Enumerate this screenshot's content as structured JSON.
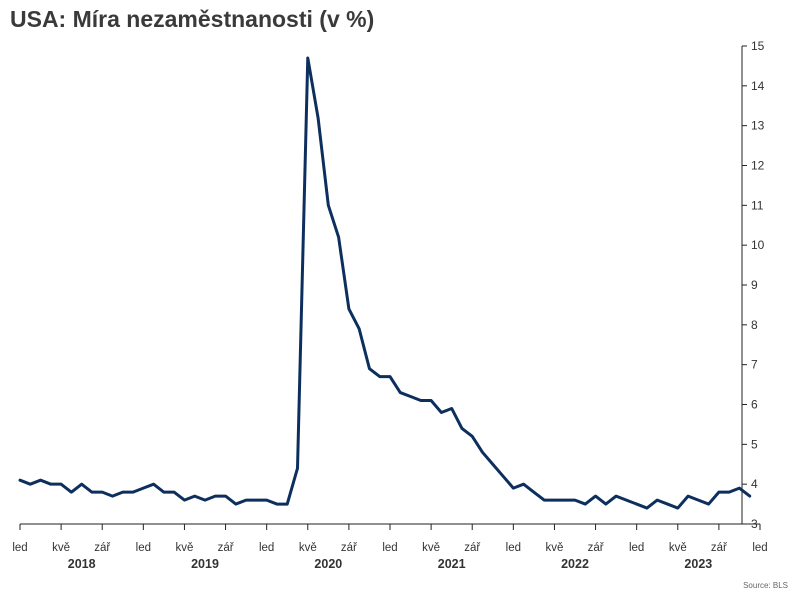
{
  "chart_data": {
    "type": "line",
    "title": "USA: Míra nezaměstnanosti (v %)",
    "source": "Source: BLS",
    "ylim": [
      3,
      15
    ],
    "y_ticks": [
      3,
      4,
      5,
      6,
      7,
      8,
      9,
      10,
      11,
      12,
      13,
      14,
      15
    ],
    "y_axis_side": "right",
    "grid": false,
    "legend": "none",
    "line_color": "#0d2f5e",
    "x_start": "2018-01",
    "x_end": "2024-01",
    "month_ticks": [
      {
        "date": "2018-01",
        "label": "led"
      },
      {
        "date": "2018-05",
        "label": "kvě"
      },
      {
        "date": "2018-09",
        "label": "zář"
      },
      {
        "date": "2019-01",
        "label": "led"
      },
      {
        "date": "2019-05",
        "label": "kvě"
      },
      {
        "date": "2019-09",
        "label": "zář"
      },
      {
        "date": "2020-01",
        "label": "led"
      },
      {
        "date": "2020-05",
        "label": "kvě"
      },
      {
        "date": "2020-09",
        "label": "zář"
      },
      {
        "date": "2021-01",
        "label": "led"
      },
      {
        "date": "2021-05",
        "label": "kvě"
      },
      {
        "date": "2021-09",
        "label": "zář"
      },
      {
        "date": "2022-01",
        "label": "led"
      },
      {
        "date": "2022-05",
        "label": "kvě"
      },
      {
        "date": "2022-09",
        "label": "zář"
      },
      {
        "date": "2023-01",
        "label": "led"
      },
      {
        "date": "2023-05",
        "label": "kvě"
      },
      {
        "date": "2023-09",
        "label": "zář"
      },
      {
        "date": "2024-01",
        "label": "led"
      }
    ],
    "year_labels": [
      {
        "date": "2018-07",
        "label": "2018"
      },
      {
        "date": "2019-07",
        "label": "2019"
      },
      {
        "date": "2020-07",
        "label": "2020"
      },
      {
        "date": "2021-07",
        "label": "2021"
      },
      {
        "date": "2022-07",
        "label": "2022"
      },
      {
        "date": "2023-07",
        "label": "2023"
      }
    ],
    "series": [
      {
        "start": "2018-01",
        "values": [
          4.1,
          4.0,
          4.1,
          4.0,
          4.0,
          3.8,
          4.0,
          3.8,
          3.8,
          3.7,
          3.8,
          3.8,
          3.9,
          4.0,
          3.8,
          3.8,
          3.6,
          3.7,
          3.6,
          3.7,
          3.7,
          3.5,
          3.6,
          3.6,
          3.6,
          3.5,
          3.5,
          4.4,
          14.7,
          13.2,
          11.0,
          10.2,
          8.4,
          7.9,
          6.9,
          6.7,
          6.7,
          6.3,
          6.2,
          6.1,
          6.1,
          5.8,
          5.9,
          5.4,
          5.2,
          4.8,
          4.5,
          4.2,
          3.9,
          4.0,
          3.8,
          3.6,
          3.6,
          3.6,
          3.6,
          3.5,
          3.7,
          3.5,
          3.7,
          3.6,
          3.5,
          3.4,
          3.6,
          3.5,
          3.4,
          3.7,
          3.6,
          3.5,
          3.8,
          3.8,
          3.9,
          3.7
        ]
      }
    ]
  }
}
